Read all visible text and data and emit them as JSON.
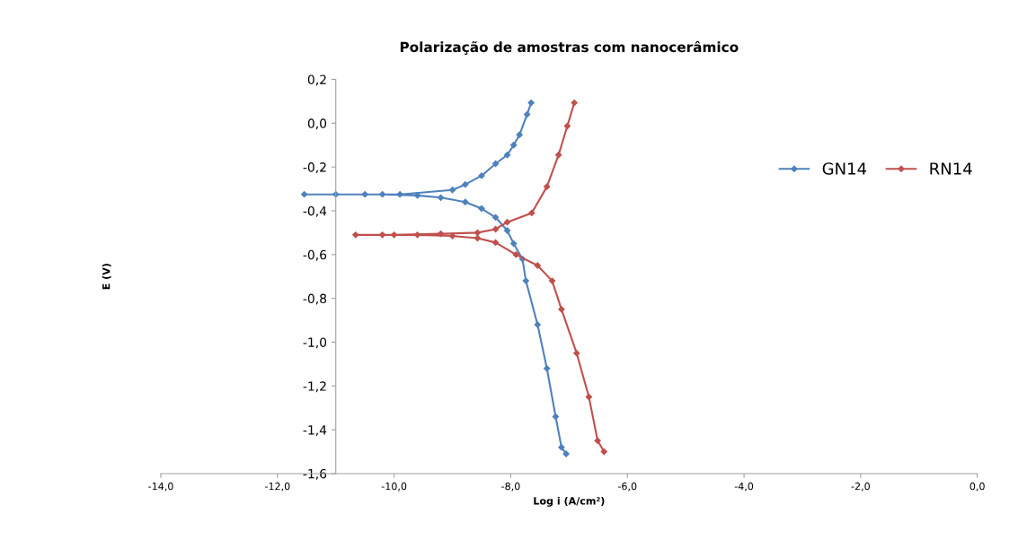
{
  "chart_data": {
    "type": "line",
    "title": "Polarização de amostras com nanocerâmico",
    "xlabel": "Log i (A/cm²)",
    "ylabel": "E (V)",
    "xlim": [
      -14,
      0
    ],
    "ylim": [
      -1.6,
      0.2
    ],
    "xticks": [
      {
        "value": -14,
        "label": "-14,0"
      },
      {
        "value": -12,
        "label": "-12,0"
      },
      {
        "value": -10,
        "label": "-10,0"
      },
      {
        "value": -8,
        "label": "-8,0"
      },
      {
        "value": -6,
        "label": "-6,0"
      },
      {
        "value": -4,
        "label": "-4,0"
      },
      {
        "value": -2,
        "label": "-2,0"
      },
      {
        "value": 0,
        "label": "0,0"
      }
    ],
    "yticks": [
      {
        "value": 0.2,
        "label": "0,2"
      },
      {
        "value": 0,
        "label": "0,0"
      },
      {
        "value": -0.2,
        "label": "-0,2"
      },
      {
        "value": -0.4,
        "label": "-0,4"
      },
      {
        "value": -0.6,
        "label": "-0,6"
      },
      {
        "value": -0.8,
        "label": "-0,8"
      },
      {
        "value": -1,
        "label": "-1,0"
      },
      {
        "value": -1.2,
        "label": "-1,2"
      },
      {
        "value": -1.4,
        "label": "-1,4"
      },
      {
        "value": -1.6,
        "label": "-1,6"
      }
    ],
    "grid": false,
    "legend": "right",
    "marker": "diamond",
    "line_style": "solid",
    "series": [
      {
        "name": "GN14",
        "color": "#4f81bd",
        "x": [
          -7.05,
          -7.13,
          -7.23,
          -7.38,
          -7.54,
          -7.74,
          -7.8,
          -7.95,
          -8.06,
          -8.26,
          -8.5,
          -8.78,
          -9.2,
          -9.6,
          -10.2,
          -11.0,
          -11.54,
          -10.5,
          -9.9,
          -9.0,
          -8.78,
          -8.5,
          -8.26,
          -8.06,
          -7.95,
          -7.85,
          -7.72,
          -7.65
        ],
        "values": [
          -1.51,
          -1.48,
          -1.34,
          -1.12,
          -0.92,
          -0.72,
          -0.62,
          -0.55,
          -0.49,
          -0.43,
          -0.39,
          -0.36,
          -0.34,
          -0.33,
          -0.325,
          -0.325,
          -0.325,
          -0.325,
          -0.325,
          -0.305,
          -0.28,
          -0.24,
          -0.185,
          -0.145,
          -0.1,
          -0.053,
          0.04,
          0.093
        ]
      },
      {
        "name": "RN14",
        "color": "#c0504d",
        "x": [
          -6.4,
          -6.51,
          -6.66,
          -6.87,
          -7.13,
          -7.29,
          -7.54,
          -7.91,
          -8.26,
          -8.57,
          -9.0,
          -9.6,
          -10.2,
          -10.66,
          -10.0,
          -9.2,
          -8.57,
          -8.26,
          -8.06,
          -7.64,
          -7.38,
          -7.18,
          -7.03,
          -6.91
        ],
        "values": [
          -1.5,
          -1.45,
          -1.25,
          -1.05,
          -0.85,
          -0.72,
          -0.65,
          -0.6,
          -0.545,
          -0.525,
          -0.515,
          -0.51,
          -0.51,
          -0.51,
          -0.51,
          -0.505,
          -0.5,
          -0.484,
          -0.452,
          -0.41,
          -0.29,
          -0.145,
          -0.013,
          0.093
        ]
      }
    ]
  }
}
